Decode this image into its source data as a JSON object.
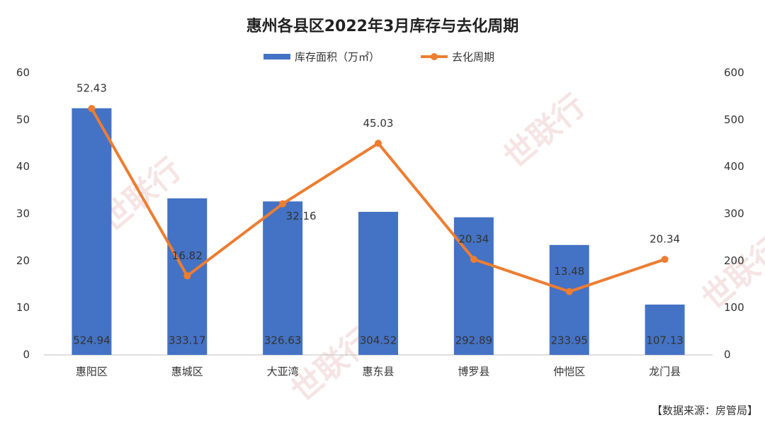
{
  "chart_data": {
    "type": "bar-line",
    "title": "惠州各县区2022年3月库存与去化周期",
    "categories": [
      "惠阳区",
      "惠城区",
      "大亚湾",
      "惠东县",
      "博罗县",
      "仲恺区",
      "龙门县"
    ],
    "series": [
      {
        "name": "库存面积（万㎡）",
        "type": "bar",
        "axis": "y2",
        "color": "#4472c4",
        "values": [
          524.94,
          333.17,
          326.63,
          304.52,
          292.89,
          233.95,
          107.13
        ]
      },
      {
        "name": "去化周期",
        "type": "line",
        "axis": "y",
        "color": "#ed7d31",
        "values": [
          52.43,
          16.82,
          32.16,
          45.03,
          20.34,
          13.48,
          20.34
        ]
      }
    ],
    "ylim": [
      0,
      60
    ],
    "yticks": [
      0,
      10,
      20,
      30,
      40,
      50,
      60
    ],
    "y2lim": [
      0,
      600
    ],
    "y2ticks": [
      0,
      100,
      200,
      300,
      400,
      500,
      600
    ],
    "legend": "top",
    "source": "【数据来源：房管局】",
    "watermark": "世联行"
  }
}
